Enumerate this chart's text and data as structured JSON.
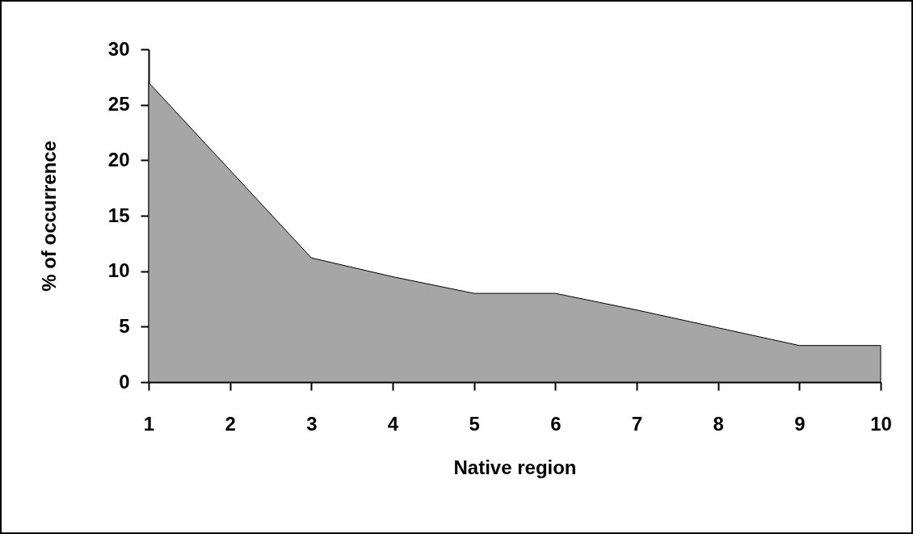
{
  "chart_data": {
    "type": "area",
    "xlabel": "Native region",
    "ylabel": "% of occurrence",
    "x": [
      1,
      2,
      3,
      4,
      5,
      6,
      7,
      8,
      9,
      10
    ],
    "series": [
      {
        "color": "#a6a6a6",
        "values": [
          27,
          19.1,
          11.2,
          9.5,
          8,
          8,
          6.5,
          4.9,
          3.3,
          3.3
        ]
      }
    ],
    "xlim": [
      1,
      10
    ],
    "xticks": [
      1,
      2,
      3,
      4,
      5,
      6,
      7,
      8,
      9,
      10
    ],
    "ylim": [
      0,
      30
    ],
    "yticks": [
      0,
      5,
      10,
      15,
      20,
      25,
      30
    ],
    "grid": false
  }
}
